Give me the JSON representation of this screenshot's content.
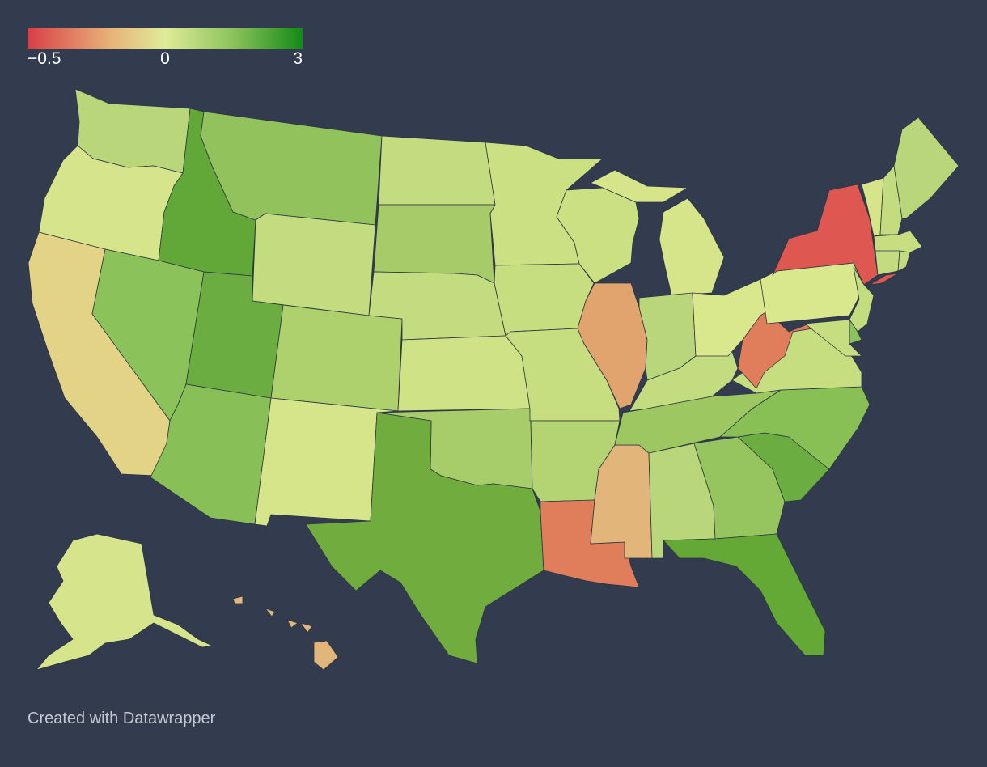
{
  "legend": {
    "min_label": "−0.5",
    "mid_label": "0",
    "max_label": "3",
    "min_value": -0.5,
    "mid_value": 0,
    "max_value": 3,
    "gradient_colors": [
      "#d93e47",
      "#e7b279",
      "#dfeb97",
      "#8bc25a",
      "#138a17"
    ]
  },
  "credit": "Created with Datawrapper",
  "colors": {
    "background": "#323c4e",
    "border": "#2c3543"
  },
  "states": [
    {
      "id": "WA",
      "fill": "#b9d77a"
    },
    {
      "id": "OR",
      "fill": "#d6e58c"
    },
    {
      "id": "CA",
      "fill": "#e2d387"
    },
    {
      "id": "ID",
      "fill": "#62a838"
    },
    {
      "id": "NV",
      "fill": "#8bc25a"
    },
    {
      "id": "MT",
      "fill": "#92c25c"
    },
    {
      "id": "WY",
      "fill": "#c3dc7f"
    },
    {
      "id": "UT",
      "fill": "#6bad41"
    },
    {
      "id": "AZ",
      "fill": "#88bf56"
    },
    {
      "id": "CO",
      "fill": "#aed06d"
    },
    {
      "id": "NM",
      "fill": "#d6e58a"
    },
    {
      "id": "ND",
      "fill": "#c3dc7f"
    },
    {
      "id": "SD",
      "fill": "#a6cb68"
    },
    {
      "id": "NE",
      "fill": "#c3dc7f"
    },
    {
      "id": "KS",
      "fill": "#d0e286"
    },
    {
      "id": "OK",
      "fill": "#a7cc6a"
    },
    {
      "id": "TX",
      "fill": "#71ac3f"
    },
    {
      "id": "MN",
      "fill": "#cbe083"
    },
    {
      "id": "IA",
      "fill": "#c6dd80"
    },
    {
      "id": "MO",
      "fill": "#c6dd80"
    },
    {
      "id": "AR",
      "fill": "#b4d373"
    },
    {
      "id": "LA",
      "fill": "#e07e5c"
    },
    {
      "id": "WI",
      "fill": "#cbe083"
    },
    {
      "id": "IL",
      "fill": "#e2a46e"
    },
    {
      "id": "MS",
      "fill": "#e2b67a"
    },
    {
      "id": "MI",
      "fill": "#d6e58a"
    },
    {
      "id": "IN",
      "fill": "#b9d77a"
    },
    {
      "id": "KY",
      "fill": "#c3dc7f"
    },
    {
      "id": "TN",
      "fill": "#9dc761"
    },
    {
      "id": "AL",
      "fill": "#b9d77a"
    },
    {
      "id": "OH",
      "fill": "#d9e78d"
    },
    {
      "id": "GA",
      "fill": "#96c45e"
    },
    {
      "id": "FL",
      "fill": "#64a936"
    },
    {
      "id": "SC",
      "fill": "#6bad41"
    },
    {
      "id": "NC",
      "fill": "#89c056"
    },
    {
      "id": "VA",
      "fill": "#c6dd80"
    },
    {
      "id": "WV",
      "fill": "#e07e5c"
    },
    {
      "id": "PA",
      "fill": "#d9e78d"
    },
    {
      "id": "NY",
      "fill": "#de5751"
    },
    {
      "id": "NJ",
      "fill": "#c3dc7f"
    },
    {
      "id": "DE",
      "fill": "#8bc25a"
    },
    {
      "id": "MD",
      "fill": "#c6dd80"
    },
    {
      "id": "VT",
      "fill": "#d6e58a"
    },
    {
      "id": "NH",
      "fill": "#c3dc7f"
    },
    {
      "id": "ME",
      "fill": "#b9d77a"
    },
    {
      "id": "MA",
      "fill": "#c6dd80"
    },
    {
      "id": "CT",
      "fill": "#c3dc7f"
    },
    {
      "id": "RI",
      "fill": "#c3dc7f"
    },
    {
      "id": "AK",
      "fill": "#d6e58c"
    },
    {
      "id": "HI",
      "fill": "#e2b67a"
    }
  ]
}
